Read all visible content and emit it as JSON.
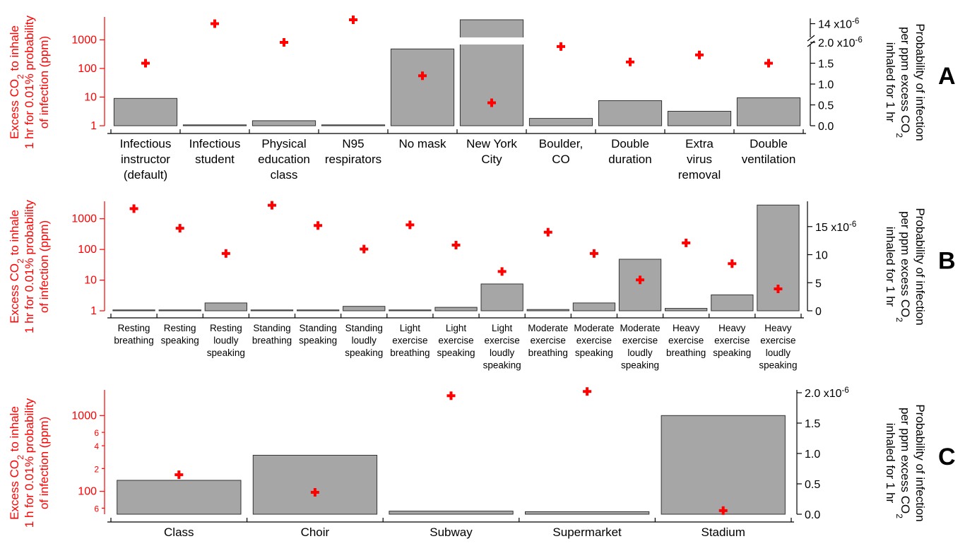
{
  "colors": {
    "bar_fill": "#a6a6a6",
    "bar_stroke": "#333333",
    "marker": "#ff0000",
    "left_axis_text": "#ff0000",
    "right_axis_text": "#000000",
    "panel_label": "#000000"
  },
  "chart_data": [
    {
      "panel": "A",
      "type": "bar",
      "left_axis": {
        "label_lines": [
          [
            {
              "t": "Excess CO"
            },
            {
              "t": "2",
              "sub": true
            },
            {
              "t": " to inhale"
            }
          ],
          [
            {
              "t": "1 hr for 0.01% probability"
            }
          ],
          [
            {
              "t": "of infection (ppm)"
            }
          ]
        ],
        "scale": "log",
        "ylim": [
          1,
          5000
        ],
        "ticks": [
          {
            "v": 1,
            "t": "1"
          },
          {
            "v": 10,
            "t": "10"
          },
          {
            "v": 100,
            "t": "100"
          },
          {
            "v": 1000,
            "t": "1000"
          }
        ]
      },
      "right_axis": {
        "label_lines": [
          [
            {
              "t": "Probability of infection"
            }
          ],
          [
            {
              "t": "per ppm excess CO"
            },
            {
              "t": "2",
              "sub": true
            }
          ],
          [
            {
              "t": "inhaled for 1 hr"
            }
          ]
        ],
        "scale": "linear",
        "broken": true,
        "segments": [
          {
            "range": [
              0,
              2.0
            ],
            "ticks": [
              {
                "v": 0,
                "t": "0.0"
              },
              {
                "v": 0.5,
                "t": "0.5"
              },
              {
                "v": 1.0,
                "t": "1.0"
              },
              {
                "v": 1.5,
                "t": "1.5"
              },
              {
                "v": 2.0,
                "t": "2.0 x10",
                "exp": "-6"
              }
            ]
          },
          {
            "range": [
              13.0,
              14.3
            ],
            "ticks": [
              {
                "v": 14,
                "t": "14 x10",
                "exp": "-6"
              }
            ]
          }
        ]
      },
      "categories": [
        [
          "Infectious",
          "instructor",
          "(default)"
        ],
        [
          "Infectious",
          "student"
        ],
        [
          "Physical",
          "education",
          "class"
        ],
        [
          "N95",
          "respirators"
        ],
        [
          "No mask"
        ],
        [
          "New York",
          "City"
        ],
        [
          "Boulder,",
          "CO"
        ],
        [
          "Double",
          "duration"
        ],
        [
          "Extra",
          "virus",
          "removal"
        ],
        [
          "Double",
          "ventilation"
        ]
      ],
      "series": [
        {
          "axis": "left",
          "mark": "bar",
          "values": [
            9,
            1.05,
            1.5,
            1.02,
            480,
            5000,
            1.8,
            7.5,
            3.2,
            9.5
          ]
        },
        {
          "axis": "right",
          "mark": "cross",
          "values": [
            1.5,
            14.0,
            2.0,
            14.3,
            1.2,
            0.55,
            1.9,
            1.53,
            1.7,
            1.5
          ]
        }
      ]
    },
    {
      "panel": "B",
      "type": "bar",
      "left_axis": {
        "label_lines": [
          [
            {
              "t": "Excess CO"
            },
            {
              "t": "2",
              "sub": true
            },
            {
              "t": " to inhale"
            }
          ],
          [
            {
              "t": "1 hr for 0.01% probability"
            }
          ],
          [
            {
              "t": "of infection (ppm)"
            }
          ]
        ],
        "scale": "log",
        "ylim": [
          1,
          3000
        ],
        "ticks": [
          {
            "v": 1,
            "t": "1"
          },
          {
            "v": 10,
            "t": "10"
          },
          {
            "v": 100,
            "t": "100"
          },
          {
            "v": 1000,
            "t": "1000"
          }
        ]
      },
      "right_axis": {
        "label_lines": [
          [
            {
              "t": "Probability of infection"
            }
          ],
          [
            {
              "t": "per ppm excess CO"
            },
            {
              "t": "2",
              "sub": true
            }
          ],
          [
            {
              "t": "inhaled for 1 hr"
            }
          ]
        ],
        "scale": "linear",
        "broken": false,
        "segments": [
          {
            "range": [
              0,
              19
            ],
            "ticks": [
              {
                "v": 0,
                "t": "0"
              },
              {
                "v": 5,
                "t": "5"
              },
              {
                "v": 10,
                "t": "10"
              },
              {
                "v": 15,
                "t": "15 x10",
                "exp": "-6"
              }
            ]
          }
        ]
      },
      "categories": [
        [
          "Resting",
          "breathing"
        ],
        [
          "Resting",
          "speaking"
        ],
        [
          "Resting",
          "loudly",
          "speaking"
        ],
        [
          "Standing",
          "breathing"
        ],
        [
          "Standing",
          "speaking"
        ],
        [
          "Standing",
          "loudly",
          "speaking"
        ],
        [
          "Light",
          "exercise",
          "breathing"
        ],
        [
          "Light",
          "exercise",
          "speaking"
        ],
        [
          "Light",
          "exercise",
          "loudly",
          "speaking"
        ],
        [
          "Moderate",
          "exercise",
          "breathing"
        ],
        [
          "Moderate",
          "exercise",
          "speaking"
        ],
        [
          "Moderate",
          "exercise",
          "loudly",
          "speaking"
        ],
        [
          "Heavy",
          "exercise",
          "breathing"
        ],
        [
          "Heavy",
          "exercise",
          "speaking"
        ],
        [
          "Heavy",
          "exercise",
          "loudly",
          "speaking"
        ]
      ],
      "series": [
        {
          "axis": "left",
          "mark": "bar",
          "values": [
            1.02,
            1.05,
            1.8,
            1.02,
            1.05,
            1.4,
            1.02,
            1.3,
            7.5,
            1.1,
            1.8,
            48,
            1.2,
            3.3,
            2800
          ]
        },
        {
          "axis": "right",
          "mark": "cross",
          "values": [
            18.2,
            14.7,
            10.2,
            18.8,
            15.2,
            11.0,
            15.3,
            11.7,
            7.0,
            14.0,
            10.2,
            5.5,
            12.1,
            8.4,
            3.9
          ]
        }
      ]
    },
    {
      "panel": "C",
      "type": "bar",
      "left_axis": {
        "label_lines": [
          [
            {
              "t": "Excess CO"
            },
            {
              "t": "2",
              "sub": true
            },
            {
              "t": " to inhale"
            }
          ],
          [
            {
              "t": "1 h for 0.01% probability"
            }
          ],
          [
            {
              "t": "of infection (ppm)"
            }
          ]
        ],
        "scale": "log",
        "ylim": [
          50,
          2000
        ],
        "ticks": [
          {
            "v": 60,
            "t": "6",
            "minor": true
          },
          {
            "v": 100,
            "t": "100"
          },
          {
            "v": 200,
            "t": "2",
            "minor": true
          },
          {
            "v": 400,
            "t": "4",
            "minor": true
          },
          {
            "v": 600,
            "t": "6",
            "minor": true
          },
          {
            "v": 1000,
            "t": "1000"
          }
        ]
      },
      "right_axis": {
        "label_lines": [
          [
            {
              "t": "Probability of infection"
            }
          ],
          [
            {
              "t": "per ppm excess CO"
            },
            {
              "t": "2",
              "sub": true
            }
          ],
          [
            {
              "t": "inhaled for 1 hr"
            }
          ]
        ],
        "scale": "linear",
        "broken": false,
        "segments": [
          {
            "range": [
              0,
              2.0
            ],
            "ticks": [
              {
                "v": 0,
                "t": "0.0"
              },
              {
                "v": 0.5,
                "t": "0.5"
              },
              {
                "v": 1.0,
                "t": "1.0"
              },
              {
                "v": 1.5,
                "t": "1.5"
              },
              {
                "v": 2.0,
                "t": "2.0 x10",
                "exp": "-6"
              }
            ]
          }
        ]
      },
      "categories": [
        [
          "Class"
        ],
        [
          "Choir"
        ],
        [
          "Subway"
        ],
        [
          "Supermarket"
        ],
        [
          "Stadium"
        ]
      ],
      "series": [
        {
          "axis": "left",
          "mark": "bar",
          "values": [
            140,
            300,
            55,
            54,
            1000
          ]
        },
        {
          "axis": "right",
          "mark": "cross",
          "values": [
            0.65,
            0.36,
            1.95,
            2.02,
            0.06
          ]
        }
      ]
    }
  ]
}
